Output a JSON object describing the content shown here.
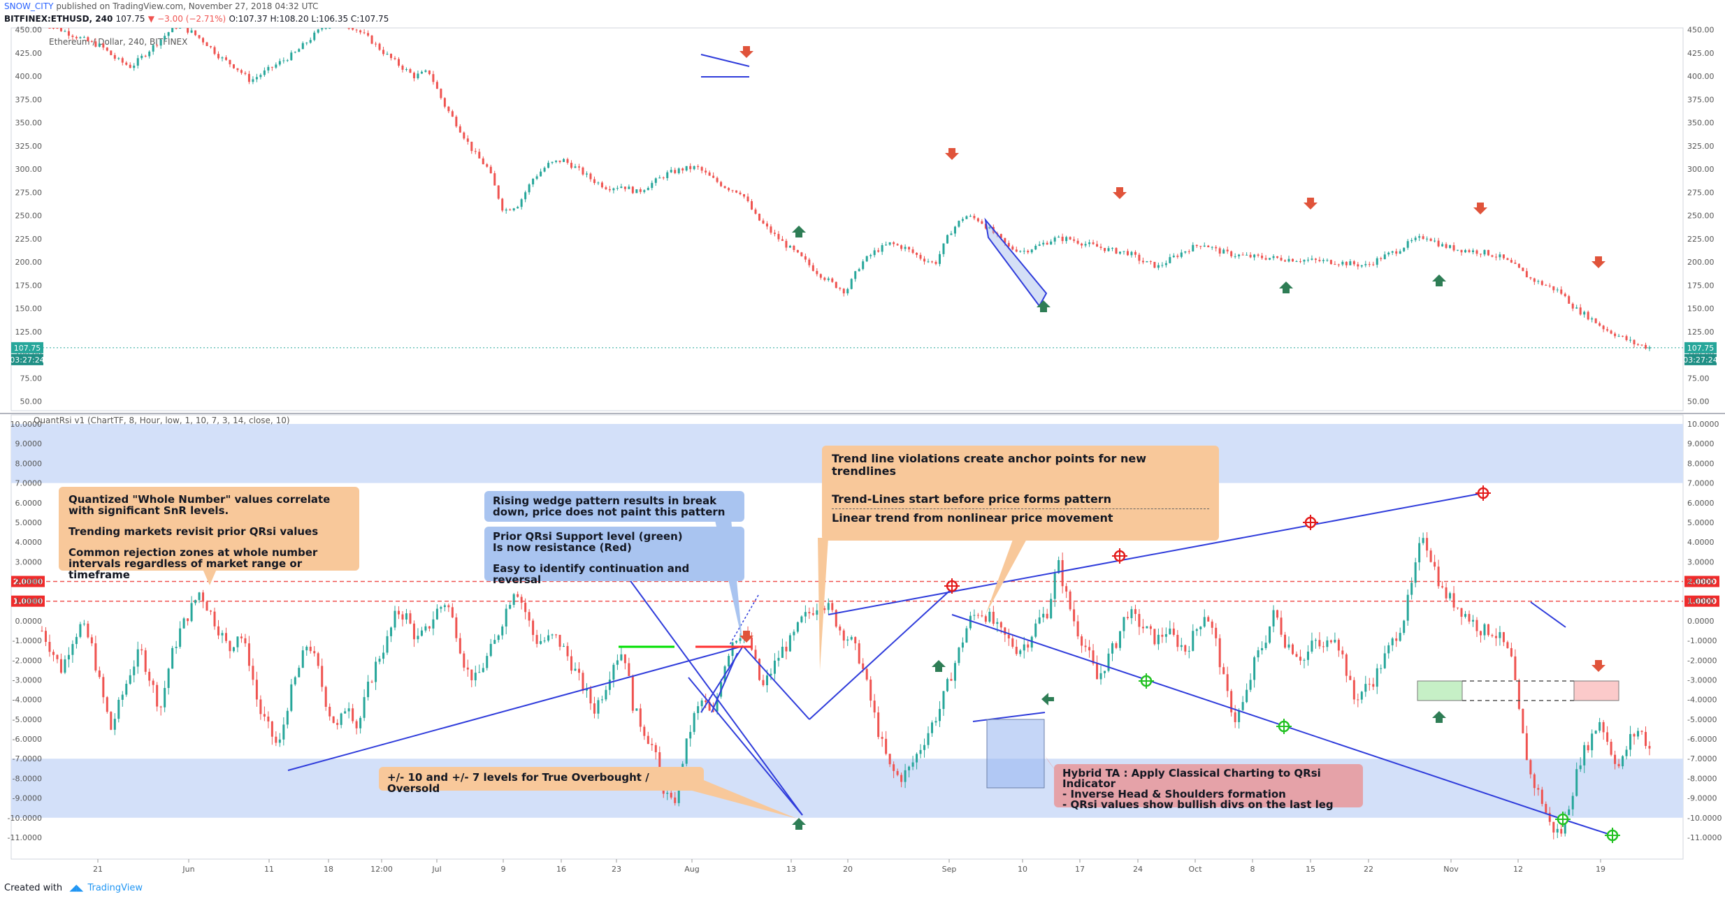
{
  "header": {
    "user": "SNOW_CITY",
    "published": "published on TradingView.com, November 27, 2018 04:32 UTC",
    "symbol": "BITFINEX:ETHUSD, 240",
    "last": "107.75",
    "change": "−3.00 (−2.71%)",
    "ohlc": "O:107.37 H:108.20 L:106.35 C:107.75"
  },
  "footer": {
    "created_with": "Created with",
    "brand": "TradingView"
  },
  "chart_data": [
    {
      "type": "line",
      "title": "Ethereum / Dollar, 240, BITFINEX",
      "ylim": [
        40,
        452
      ],
      "yticks": [
        "450.00",
        "425.00",
        "400.00",
        "375.00",
        "350.00",
        "325.00",
        "300.00",
        "275.00",
        "250.00",
        "225.00",
        "200.00",
        "175.00",
        "150.00",
        "125.00",
        "100.00",
        "75.00",
        "50.00"
      ],
      "ytick_values": [
        450,
        425,
        400,
        375,
        350,
        325,
        300,
        275,
        250,
        225,
        200,
        175,
        150,
        125,
        100,
        75,
        50
      ],
      "last_price_label": "107.75",
      "countdown_label": "03:27:24",
      "x_labels": [
        "21",
        "Jun",
        "11",
        "18",
        "12:00",
        "Jul",
        "9",
        "16",
        "23",
        "Aug",
        "13",
        "20",
        "Sep",
        "10",
        "17",
        "24",
        "Oct",
        "8",
        "15",
        "22",
        "Nov",
        "12",
        "19"
      ],
      "series": [
        {
          "values": [
            460,
            452,
            445,
            438,
            432,
            418,
            410,
            425,
            440,
            455,
            448,
            436,
            420,
            410,
            395,
            405,
            415,
            425,
            440,
            455,
            460,
            452,
            440,
            425,
            412,
            400,
            405,
            370,
            345,
            318,
            300,
            255,
            262,
            290,
            305,
            310,
            300,
            288,
            280,
            282,
            275,
            285,
            295,
            300,
            302,
            290,
            280,
            275,
            248,
            232,
            218,
            205,
            190,
            178,
            168,
            198,
            212,
            220,
            215,
            205,
            198,
            232,
            250,
            245,
            230,
            215,
            212,
            218,
            225,
            225,
            220,
            216,
            212,
            210,
            200,
            195,
            205,
            214,
            220,
            212,
            208,
            206,
            205,
            204,
            203,
            202,
            201,
            200,
            198,
            196,
            205,
            212,
            222,
            228,
            218,
            214,
            212,
            210,
            205,
            195,
            182,
            175,
            168,
            150,
            140,
            128,
            120,
            112,
            108
          ]
        }
      ],
      "signals": {
        "down_arrows": [
          "Aug 06",
          "Sep 01",
          "Sep 20",
          "Oct 15",
          "Nov 05",
          "Nov 19"
        ],
        "up_arrows": [
          "Aug 13",
          "Sep 12",
          "Oct 10",
          "Oct 30"
        ]
      }
    },
    {
      "type": "line",
      "title": "QuantRsi v1 (ChartTF, 8, Hour, low, 1, 10, 7, 3, 14, close, 10)",
      "ylim": [
        -12,
        11
      ],
      "yticks": [
        "10.0000",
        "9.0000",
        "8.0000",
        "7.0000",
        "6.0000",
        "5.0000",
        "4.0000",
        "3.0000",
        "2.0000",
        "1.0000",
        "0.0000",
        "-1.0000",
        "-2.0000",
        "-3.0000",
        "-4.0000",
        "-5.0000",
        "-6.0000",
        "-7.0000",
        "-8.0000",
        "-9.0000",
        "-10.0000",
        "-11.0000"
      ],
      "ytick_values": [
        10,
        9,
        8,
        7,
        6,
        5,
        4,
        3,
        2,
        1,
        0,
        -1,
        -2,
        -3,
        -4,
        -5,
        -6,
        -7,
        -8,
        -9,
        -10,
        -11
      ],
      "highlight_levels": [
        {
          "label": "2.0000",
          "value": 2
        },
        {
          "label": "1.0000",
          "value": 1
        }
      ],
      "zones": [
        {
          "from": 7,
          "to": 10
        },
        {
          "from": -10,
          "to": -7
        }
      ],
      "series": [
        {
          "values": [
            -0.5,
            -1.5,
            -2.5,
            -1,
            -0.2,
            -1.2,
            -3.5,
            -5.5,
            -4,
            -2.5,
            -1.5,
            -3,
            -4.5,
            -2,
            -0.5,
            0.5,
            1.5,
            0.5,
            -0.5,
            -1.5,
            -0.5,
            -2,
            -4.5,
            -5.5,
            -6.5,
            -4,
            -2.5,
            -1,
            -2.5,
            -4.5,
            -5.5,
            -4,
            -5.5,
            -3.5,
            -2,
            -1,
            0.5,
            0.2,
            -1,
            -0.5,
            0.5,
            1,
            -0.5,
            -2.5,
            -3,
            -2,
            -1,
            0.5,
            1.8,
            0.5,
            -1,
            -1,
            -0.8,
            -1.5,
            -2.5,
            -3.5,
            -4.5,
            -3.5,
            -2,
            -1.5,
            -4.5,
            -5.5,
            -6.5,
            -8.5,
            -9.5,
            -7,
            -5,
            -4,
            -5,
            -2.5,
            -1,
            -0.5,
            -1.5,
            -3.5,
            -2.5,
            -1.5,
            -1,
            0,
            0.5,
            1,
            0.5,
            -0.5,
            -1,
            -2,
            -4,
            -6,
            -7.5,
            -8,
            -7.5,
            -6.5,
            -5.5,
            -4.5,
            -3,
            -1.5,
            0,
            0.5,
            0.2,
            -0.5,
            -1,
            -1.5,
            -1,
            0,
            0.5,
            3,
            1,
            -0.5,
            -1.5,
            -3,
            -2,
            -1,
            0.5,
            0,
            -0.5,
            -1,
            -0.5,
            -1,
            -1.5,
            -0.5,
            0.5,
            -1,
            -3.5,
            -5,
            -4,
            -2,
            -1,
            0.5,
            -1,
            -1.5,
            -2,
            -1,
            -1.5,
            -0.5,
            -2,
            -4,
            -3.5,
            -3,
            -2,
            -1,
            0,
            2,
            4.5,
            3,
            1.5,
            1,
            0.5,
            0,
            -0.5,
            -0.5,
            -1,
            -2,
            -5.5,
            -8,
            -9,
            -10.5,
            -10.8,
            -9,
            -7,
            -6,
            -5,
            -6.5,
            -7.5,
            -6,
            -5.5,
            -6.5
          ]
        }
      ]
    }
  ],
  "annotations": {
    "top_left": [
      "Quantized \"Whole Number\" values correlate with significant SnR levels.",
      "Trending markets revisit prior QRsi values",
      "Common rejection zones at whole number intervals regardless of market range or timeframe"
    ],
    "rising_wedge": [
      "Rising wedge pattern results in break down, price does not paint this pattern"
    ],
    "prior_support": [
      "Prior QRsi Support level (green)",
      "Is now resistance (Red)",
      "Easy to identify continuation and reversal"
    ],
    "trend_line": [
      "Trend line violations create anchor points for new trendlines",
      "Trend-Lines start before price forms pattern",
      "Linear trend from nonlinear price movement"
    ],
    "levels": "+/- 10 and +/- 7 levels for True Overbought / Oversold",
    "hybrid": [
      "Hybrid TA : Apply Classical Charting to QRsi Indicator",
      "- Inverse Head & Shoulders formation",
      "- QRsi values show bullish divs on the last leg"
    ]
  },
  "colors": {
    "up": "#26a69a",
    "down": "#ef5350",
    "trendline": "#2f3cdb",
    "zone": "#d3e0f9",
    "callout_orange": "#f8c89a",
    "callout_blue": "#a9c4f0",
    "callout_pink": "#e5a2a8"
  }
}
